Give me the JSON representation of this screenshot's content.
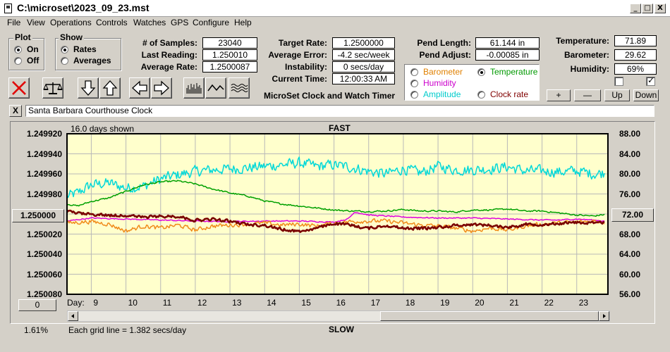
{
  "window": {
    "title": "C:\\microset\\2023_09_23.mst",
    "minimize": "_",
    "maximize": "□",
    "close": "X"
  },
  "menu": [
    "File",
    "View",
    "Operations",
    "Controls",
    "Watches",
    "GPS",
    "Configure",
    "Help"
  ],
  "plot_group": {
    "title": "Plot",
    "on": "On",
    "off": "Off",
    "selected": "On"
  },
  "show_group": {
    "title": "Show",
    "rates": "Rates",
    "averages": "Averages",
    "selected": "Rates"
  },
  "stats": {
    "samples_label": "# of Samples:",
    "samples": "23040",
    "last_reading_label": "Last Reading:",
    "last_reading": "1.250010",
    "average_rate_label": "Average Rate:",
    "average_rate": "1.2500087",
    "target_rate_label": "Target Rate:",
    "target_rate": "1.2500000",
    "average_error_label": "Average Error:",
    "average_error": "-4.2 sec/week",
    "instability_label": "Instability:",
    "instability": "0 secs/day",
    "current_time_label": "Current Time:",
    "current_time": "12:00:33 AM",
    "app_name": "MicroSet Clock and Watch Timer"
  },
  "pend": {
    "length_label": "Pend Length:",
    "length": "61.144 in",
    "adjust_label": "Pend Adjust:",
    "adjust": "-0.00085 in"
  },
  "env": {
    "temperature_label": "Temperature:",
    "temperature": "71.89",
    "barometer_label": "Barometer:",
    "barometer": "29.62",
    "humidity_label": "Humidity:",
    "humidity": "69%",
    "checkbox1_checked": false,
    "checkbox2_checked": true
  },
  "sensor_select": {
    "barometer": "Barometer",
    "temperature": "Temperature",
    "humidity": "Humidity",
    "amplitude": "Amplitude",
    "clock_rate": "Clock rate",
    "selected": "Temperature",
    "colors": {
      "barometer": "#e08000",
      "temperature": "#009900",
      "humidity": "#cc00cc",
      "amplitude": "#00cccc",
      "clock_rate": "#800000"
    }
  },
  "adjust_buttons": {
    "plus": "+",
    "minus": "—",
    "up": "Up",
    "down": "Down"
  },
  "clock_name": {
    "close": "X",
    "value": "Santa Barbara Courthouse Clock"
  },
  "chart": {
    "days_shown": "16.0 days shown",
    "fast_label": "FAST",
    "slow_label": "SLOW",
    "left_center_button": "1.250000",
    "right_center_button": "72.00",
    "zero_button": "0",
    "day_label": "Day:",
    "percent": "1.61%",
    "grid_note": "Each grid line = 1.382 secs/day"
  },
  "chart_data": {
    "type": "line",
    "plot_bg": "#ffffcc",
    "grid": true,
    "x_label": "Day:",
    "x_range": [
      8.3,
      23.9
    ],
    "x_ticks": [
      9,
      10,
      11,
      12,
      13,
      14,
      15,
      16,
      17,
      18,
      19,
      20,
      21,
      22,
      23
    ],
    "y_left_ticks": [
      "1.249920",
      "1.249940",
      "1.249960",
      "1.249980",
      "1.250000",
      "1.250020",
      "1.250040",
      "1.250060",
      "1.250080"
    ],
    "y_left_range": [
      1.24992,
      1.25008
    ],
    "y_right_ticks": [
      "88.00",
      "84.00",
      "80.00",
      "76.00",
      "72.00",
      "68.00",
      "64.00",
      "60.00",
      "56.00"
    ],
    "y_right_range": [
      88,
      56
    ],
    "series": [
      {
        "key": "amplitude",
        "color": "#00d8d8",
        "width": 1.5,
        "axis": "right",
        "noise": 1.4,
        "x": [
          8.3,
          8.6,
          9.0,
          9.5,
          10.0,
          10.5,
          11.0,
          11.5,
          12.0,
          12.5,
          13.0,
          13.5,
          14.0,
          14.5,
          15.0,
          15.5,
          16.0,
          16.5,
          17.0,
          17.5,
          18.0,
          18.5,
          19.0,
          19.5,
          20.0,
          20.5,
          21.0,
          21.5,
          22.0,
          22.5,
          23.0,
          23.5,
          23.8
        ],
        "y": [
          75.5,
          76.2,
          77.8,
          78.2,
          77.2,
          77.5,
          79.0,
          79.8,
          80.5,
          80.8,
          81.0,
          81.2,
          81.5,
          81.8,
          82.2,
          81.5,
          81.8,
          81.3,
          80.5,
          80.0,
          81.0,
          80.2,
          81.5,
          80.8,
          80.8,
          81.0,
          81.4,
          80.6,
          80.6,
          80.4,
          80.6,
          80.0,
          80.2
        ]
      },
      {
        "key": "temperature",
        "color": "#00a000",
        "width": 1.5,
        "axis": "right",
        "noise": 0.2,
        "x": [
          8.3,
          8.6,
          9.0,
          9.5,
          10.0,
          10.5,
          11.0,
          11.5,
          12.0,
          12.5,
          13.0,
          13.5,
          14.0,
          14.5,
          15.0,
          15.5,
          16.0,
          16.5,
          17.0,
          17.5,
          18.0,
          18.5,
          19.0,
          19.5,
          20.0,
          20.5,
          21.0,
          21.5,
          22.0,
          22.5,
          23.0,
          23.5,
          23.8
        ],
        "y": [
          74.0,
          73.6,
          74.5,
          75.2,
          76.5,
          77.8,
          78.4,
          78.6,
          78.0,
          77.0,
          76.2,
          75.6,
          74.6,
          74.0,
          73.6,
          73.2,
          72.8,
          72.6,
          72.5,
          72.6,
          72.9,
          72.6,
          72.6,
          72.4,
          72.8,
          72.8,
          73.0,
          72.6,
          72.6,
          72.2,
          71.8,
          71.6,
          71.9
        ]
      },
      {
        "key": "humidity",
        "color": "#dd00dd",
        "width": 1.5,
        "axis": "right",
        "noise": 0.15,
        "x": [
          8.3,
          9.0,
          10.0,
          11.0,
          12.0,
          13.0,
          14.0,
          15.0,
          16.0,
          16.4,
          16.6,
          17.0,
          18.0,
          19.0,
          20.0,
          21.0,
          22.0,
          22.5,
          23.0,
          23.5,
          23.8
        ],
        "y": [
          70.6,
          71.2,
          71.0,
          70.8,
          70.6,
          70.5,
          70.6,
          70.6,
          70.4,
          71.0,
          72.4,
          71.8,
          71.4,
          71.2,
          71.2,
          71.0,
          70.8,
          70.8,
          71.0,
          70.8,
          70.6
        ]
      },
      {
        "key": "barometer",
        "color": "#f08a1a",
        "width": 1.5,
        "axis": "right",
        "noise": 0.55,
        "x": [
          8.3,
          9.0,
          9.5,
          10.0,
          10.5,
          11.0,
          11.5,
          12.0,
          12.5,
          13.0,
          13.5,
          14.0,
          14.5,
          15.0,
          15.5,
          16.0,
          16.5,
          17.0,
          17.5,
          18.0,
          18.5,
          19.0,
          19.5,
          20.0,
          20.5,
          21.0,
          21.5,
          22.0,
          22.5,
          23.0,
          23.5,
          23.8
        ],
        "y": [
          70.2,
          70.5,
          70.0,
          68.6,
          69.6,
          69.2,
          69.8,
          68.8,
          69.6,
          69.8,
          70.0,
          70.2,
          69.8,
          70.0,
          69.6,
          70.2,
          70.5,
          70.6,
          70.6,
          70.2,
          69.8,
          69.6,
          69.2,
          68.6,
          69.2,
          68.8,
          69.6,
          70.0,
          70.2,
          70.4,
          70.6,
          70.4
        ]
      },
      {
        "key": "clock_rate",
        "color": "#7a0000",
        "width": 2.6,
        "axis": "left",
        "noise": 1.9e-06,
        "x": [
          8.3,
          8.6,
          9.0,
          9.5,
          10.0,
          10.5,
          11.0,
          11.5,
          12.0,
          12.5,
          13.0,
          13.5,
          14.0,
          14.5,
          15.0,
          15.5,
          16.0,
          16.5,
          17.0,
          17.5,
          18.0,
          18.5,
          19.0,
          19.5,
          20.0,
          20.5,
          21.0,
          21.5,
          22.0,
          22.5,
          23.0,
          23.5,
          23.8
        ],
        "y": [
          1.2499973,
          1.2499993,
          1.2500003,
          1.2500013,
          1.2500013,
          1.2500033,
          1.2500023,
          1.2500023,
          1.2500063,
          1.2500053,
          1.2500073,
          1.2500103,
          1.2500113,
          1.2500153,
          1.2500173,
          1.2500143,
          1.2500093,
          1.2500113,
          1.2500143,
          1.2500113,
          1.2500143,
          1.2500143,
          1.2500133,
          1.2500113,
          1.2500103,
          1.2500113,
          1.2500133,
          1.2500103,
          1.2500103,
          1.2500093,
          1.2500083,
          1.2500093,
          1.2500083
        ]
      }
    ]
  }
}
